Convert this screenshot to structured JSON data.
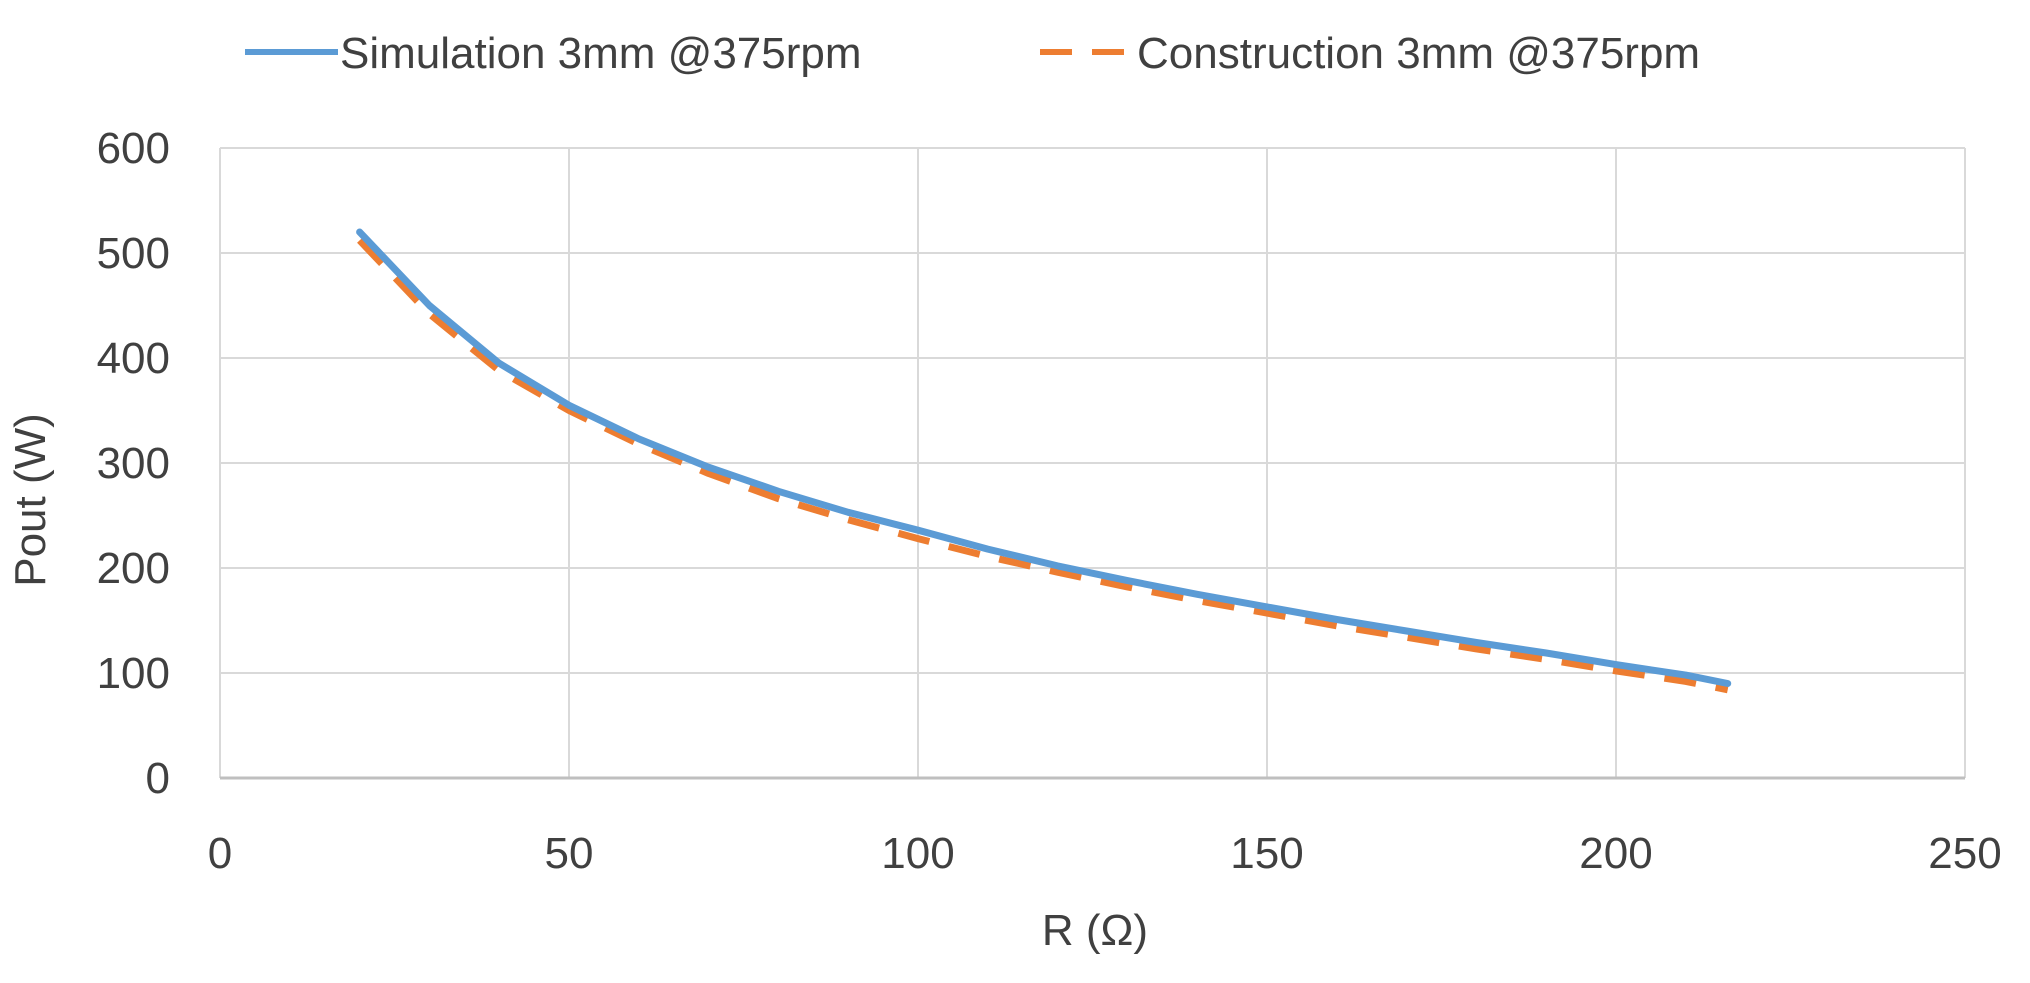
{
  "chart_data": {
    "type": "line",
    "title": "",
    "xlabel": "R (Ω)",
    "ylabel": "Pout (W)",
    "xlim": [
      0,
      250
    ],
    "ylim": [
      0,
      600
    ],
    "xticks": [
      0,
      50,
      100,
      150,
      200,
      250
    ],
    "yticks": [
      0,
      100,
      200,
      300,
      400,
      500,
      600
    ],
    "grid": true,
    "legend_position": "top",
    "series": [
      {
        "name": "Simulation 3mm @375rpm",
        "color": "#5B9BD5",
        "style": "solid",
        "x": [
          20,
          30,
          40,
          50,
          60,
          70,
          80,
          90,
          100,
          110,
          120,
          130,
          140,
          150,
          160,
          170,
          180,
          190,
          200,
          210,
          216
        ],
        "y": [
          520,
          450,
          395,
          355,
          323,
          296,
          273,
          253,
          236,
          218,
          202,
          188,
          175,
          163,
          151,
          140,
          129,
          119,
          108,
          98,
          90
        ]
      },
      {
        "name": "Construction 3mm @375rpm",
        "color": "#ED7D31",
        "style": "dashed",
        "x": [
          20,
          30,
          40,
          50,
          60,
          70,
          80,
          90,
          100,
          110,
          120,
          130,
          140,
          150,
          160,
          170,
          180,
          190,
          200,
          210,
          216
        ],
        "y": [
          512,
          442,
          388,
          350,
          318,
          290,
          266,
          246,
          228,
          211,
          196,
          182,
          169,
          157,
          145,
          134,
          123,
          113,
          102,
          92,
          84
        ]
      }
    ]
  }
}
